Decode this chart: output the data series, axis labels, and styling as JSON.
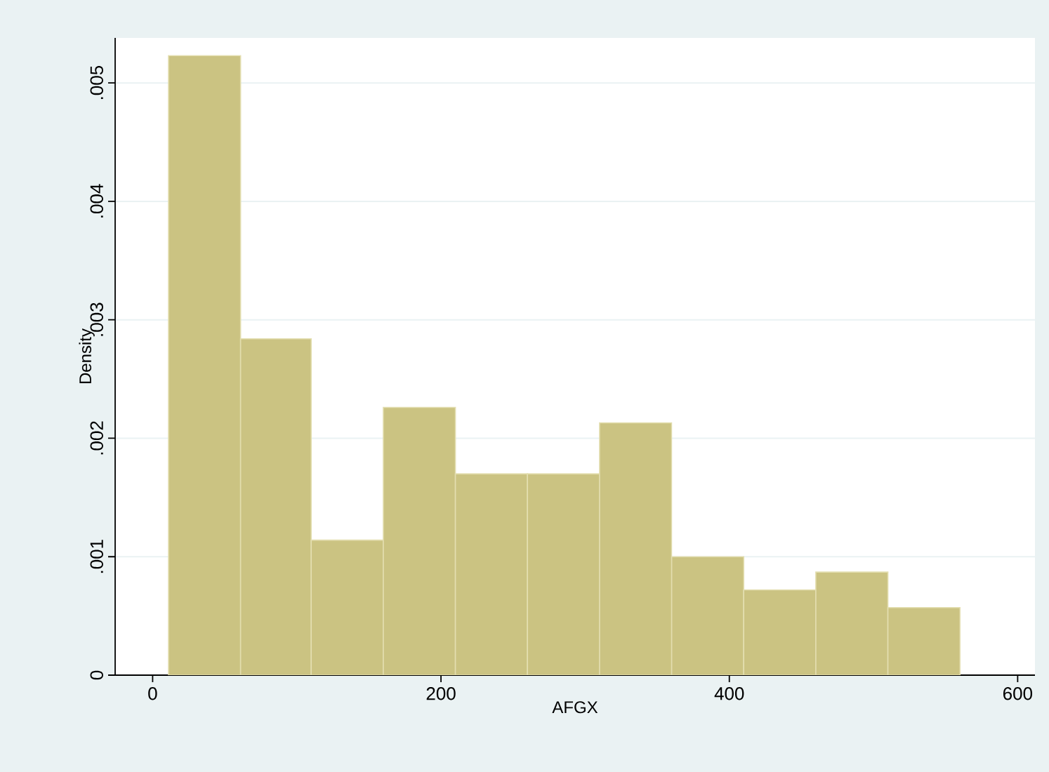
{
  "chart_data": {
    "type": "histogram",
    "xlabel": "AFGX",
    "ylabel": "Density",
    "bins": [
      11,
      61,
      110,
      160,
      210,
      260,
      310,
      360,
      410,
      460,
      510,
      560
    ],
    "values": [
      0.00523,
      0.00284,
      0.00114,
      0.00226,
      0.0017,
      0.0017,
      0.00213,
      0.001,
      0.00072,
      0.00087,
      0.00057
    ],
    "color": "#cbc382",
    "xlim": [
      -26,
      612
    ],
    "ylim": [
      0,
      0.00538
    ],
    "xticks": [
      0,
      200,
      400,
      600
    ],
    "yticks": [
      0,
      {
        "value": 0.001,
        "label": ".001"
      },
      {
        "value": 0.002,
        "label": ".002"
      },
      {
        "value": 0.003,
        "label": ".003"
      },
      {
        "value": 0.004,
        "label": ".004"
      },
      {
        "value": 0.005,
        "label": ".005"
      }
    ],
    "grid": "y"
  }
}
